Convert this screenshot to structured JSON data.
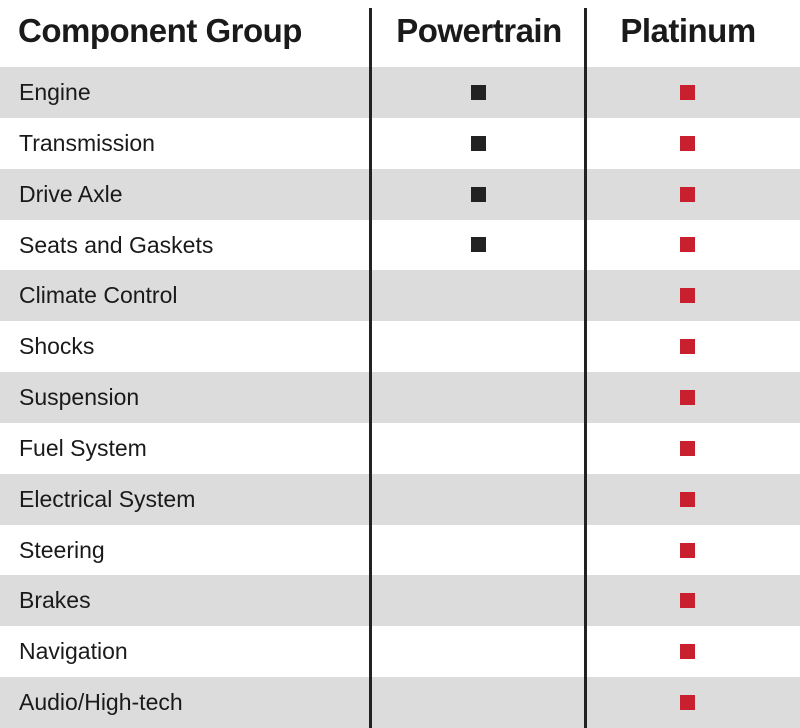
{
  "table": {
    "headers": [
      "Component Group",
      "Powertrain",
      "Platinum"
    ],
    "rows": [
      {
        "name": "Engine",
        "powertrain": true,
        "platinum": true
      },
      {
        "name": "Transmission",
        "powertrain": true,
        "platinum": true
      },
      {
        "name": "Drive Axle",
        "powertrain": true,
        "platinum": true
      },
      {
        "name": "Seats and Gaskets",
        "powertrain": true,
        "platinum": true
      },
      {
        "name": "Climate Control",
        "powertrain": false,
        "platinum": true
      },
      {
        "name": "Shocks",
        "powertrain": false,
        "platinum": true
      },
      {
        "name": "Suspension",
        "powertrain": false,
        "platinum": true
      },
      {
        "name": "Fuel System",
        "powertrain": false,
        "platinum": true
      },
      {
        "name": "Electrical System",
        "powertrain": false,
        "platinum": true
      },
      {
        "name": "Steering",
        "powertrain": false,
        "platinum": true
      },
      {
        "name": "Brakes",
        "powertrain": false,
        "platinum": true
      },
      {
        "name": "Navigation",
        "powertrain": false,
        "platinum": true
      },
      {
        "name": "Audio/High-tech",
        "powertrain": false,
        "platinum": true
      }
    ]
  }
}
